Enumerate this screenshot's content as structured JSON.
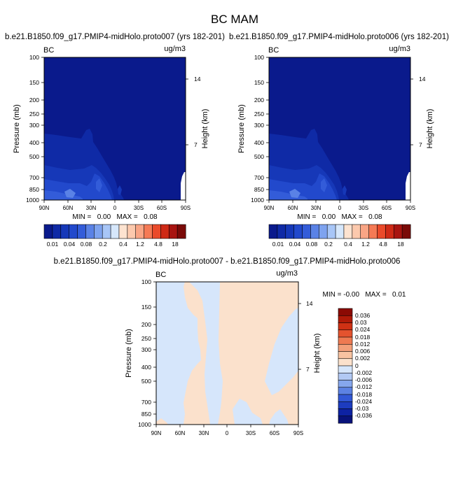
{
  "figure": {
    "title": "BC MAM"
  },
  "colors": {
    "abs_scale": [
      "#0a1a8c",
      "#0f2aa6",
      "#1638b8",
      "#2249cc",
      "#335cd9",
      "#5a82e6",
      "#7ea3ef",
      "#a8c6f7",
      "#d6e7fb",
      "#fde3d0",
      "#fcc9ad",
      "#f9a585",
      "#f57a55",
      "#ea4a2a",
      "#cf2a16",
      "#a81410",
      "#7a0a08"
    ],
    "diff_scale": [
      "#08127a",
      "#0d22a3",
      "#1d3cbf",
      "#3258d6",
      "#5c82e3",
      "#86a7ed",
      "#b2c9f4",
      "#d6e6fb",
      "#fbe1cc",
      "#f8c3a1",
      "#f3a07a",
      "#ee7a52",
      "#e4532e",
      "#cf3114",
      "#b01a08",
      "#8b0a04"
    ],
    "frame": "#000000"
  },
  "chart_data": [
    {
      "type": "heatmap",
      "title": "b.e21.B1850.f09_g17.PMIP4-midHolo.proto007 (yrs 182-201)",
      "left_label": "BC",
      "units": "ug/m3",
      "xlabel": "",
      "ylabel": "Pressure (mb)",
      "ylabel_right": "Height (km)",
      "x_ticks": [
        "90N",
        "60N",
        "30N",
        "0",
        "30S",
        "60S",
        "90S"
      ],
      "y_ticks": [
        "100",
        "150",
        "200",
        "250",
        "300",
        "400",
        "500",
        "700",
        "850",
        "1000"
      ],
      "y_right_ticks": [
        "14",
        "7"
      ],
      "stats": "MIN =   0.00   MAX =   0.08",
      "colorbar_labels": [
        "0.01",
        "0.04",
        "0.08",
        "0.2",
        "0.4",
        "1.2",
        "4.8",
        "18"
      ]
    },
    {
      "type": "heatmap",
      "title": "b.e21.B1850.f09_g17.PMIP4-midHolo.proto006 (yrs 182-201)",
      "left_label": "BC",
      "units": "ug/m3",
      "xlabel": "",
      "ylabel": "Pressure (mb)",
      "ylabel_right": "Height (km)",
      "x_ticks": [
        "90N",
        "60N",
        "30N",
        "0",
        "30S",
        "60S",
        "90S"
      ],
      "y_ticks": [
        "100",
        "150",
        "200",
        "250",
        "300",
        "400",
        "500",
        "700",
        "850",
        "1000"
      ],
      "y_right_ticks": [
        "14",
        "7"
      ],
      "stats": "MIN =   0.00   MAX =   0.08",
      "colorbar_labels": [
        "0.01",
        "0.04",
        "0.08",
        "0.2",
        "0.4",
        "1.2",
        "4.8",
        "18"
      ]
    },
    {
      "type": "heatmap",
      "title": "b.e21.B1850.f09_g17.PMIP4-midHolo.proto007 - b.e21.B1850.f09_g17.PMIP4-midHolo.proto006",
      "left_label": "BC",
      "units": "ug/m3",
      "xlabel": "",
      "ylabel": "Pressure (mb)",
      "ylabel_right": "Height (km)",
      "x_ticks": [
        "90N",
        "60N",
        "30N",
        "0",
        "30S",
        "60S",
        "90S"
      ],
      "y_ticks": [
        "100",
        "150",
        "200",
        "250",
        "300",
        "400",
        "500",
        "700",
        "850",
        "1000"
      ],
      "y_right_ticks": [
        "14",
        "7"
      ],
      "stats": "MIN = -0.00   MAX =   0.01",
      "colorbar_labels": [
        "0.036",
        "0.03",
        "0.024",
        "0.018",
        "0.012",
        "0.006",
        "0.002",
        "0",
        "-0.002",
        "-0.006",
        "-0.012",
        "-0.018",
        "-0.024",
        "-0.03",
        "-0.036"
      ]
    }
  ]
}
